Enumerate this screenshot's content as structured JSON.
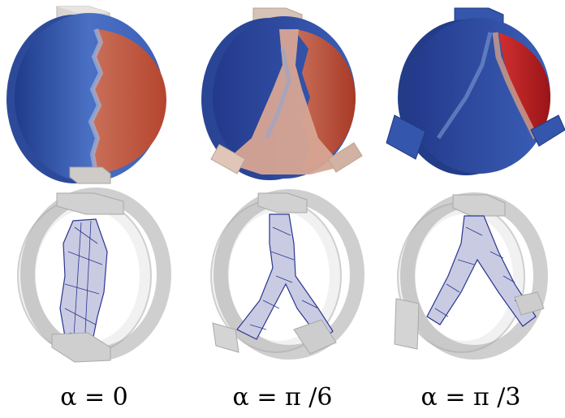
{
  "figure": {
    "captions": [
      "α = 0",
      "α = π /6",
      "α = π /3"
    ],
    "colors": {
      "blue": "#3b5fb8",
      "blue_dark": "#23398a",
      "red": "#c4553a",
      "red_dark": "#b01f25",
      "crack": "#c8a090",
      "platen": "#cfcbc8",
      "ring": "#e6e6e6",
      "mesh": "#2b3590"
    }
  }
}
